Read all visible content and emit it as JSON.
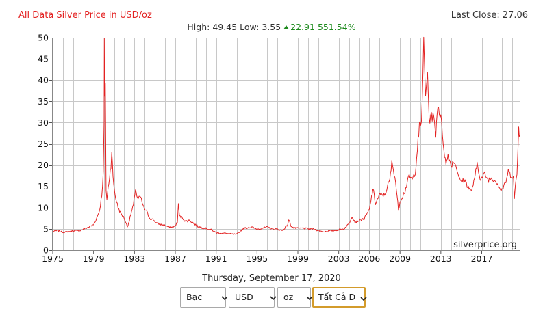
{
  "header": {
    "title": "All Data Silver Price in USD/oz",
    "last_close_label": "Last Close:",
    "last_close_value": "27.06",
    "high_label": "High:",
    "high_value": "49.45",
    "low_label": "Low:",
    "low_value": "3.55",
    "change_value": "22.91",
    "change_pct": "551.54%"
  },
  "watermark": "silverprice.org",
  "date_label": "Thursday, September 17, 2020",
  "controls": {
    "metal": "Bạc",
    "currency": "USD",
    "unit": "oz",
    "range": "Tất Cả D"
  },
  "colors": {
    "line": "#e32222",
    "title": "#e32222",
    "up": "#1e8a1e",
    "grid": "#c8c8c8"
  },
  "chart_data": {
    "type": "line",
    "title": "All Data Silver Price in USD/oz",
    "xlabel": "",
    "ylabel": "",
    "xlim": [
      1975,
      2020.72
    ],
    "ylim": [
      0,
      50
    ],
    "x_ticks": [
      1975,
      1979,
      1983,
      1987,
      1991,
      1995,
      1999,
      2003,
      2006,
      2009,
      2013,
      2017
    ],
    "y_ticks": [
      0,
      5,
      10,
      15,
      20,
      25,
      30,
      35,
      40,
      45,
      50
    ],
    "grid": true,
    "series": [
      {
        "name": "",
        "points": [
          [
            1975.0,
            4.4
          ],
          [
            1975.5,
            4.6
          ],
          [
            1976.0,
            4.2
          ],
          [
            1976.5,
            4.3
          ],
          [
            1977.0,
            4.6
          ],
          [
            1977.5,
            4.5
          ],
          [
            1978.0,
            4.9
          ],
          [
            1978.5,
            5.4
          ],
          [
            1979.0,
            6.0
          ],
          [
            1979.3,
            7.5
          ],
          [
            1979.6,
            9.5
          ],
          [
            1979.8,
            13.0
          ],
          [
            1979.95,
            18.0
          ],
          [
            1980.03,
            30.0
          ],
          [
            1980.05,
            49.45
          ],
          [
            1980.08,
            35.0
          ],
          [
            1980.15,
            40.0
          ],
          [
            1980.22,
            14.0
          ],
          [
            1980.3,
            12.0
          ],
          [
            1980.5,
            16.0
          ],
          [
            1980.7,
            20.0
          ],
          [
            1980.78,
            23.5
          ],
          [
            1980.9,
            17.0
          ],
          [
            1981.1,
            13.0
          ],
          [
            1981.4,
            10.0
          ],
          [
            1981.7,
            8.5
          ],
          [
            1982.0,
            7.5
          ],
          [
            1982.3,
            5.5
          ],
          [
            1982.5,
            7.0
          ],
          [
            1982.7,
            9.0
          ],
          [
            1982.9,
            10.5
          ],
          [
            1983.1,
            14.5
          ],
          [
            1983.3,
            12.0
          ],
          [
            1983.6,
            12.5
          ],
          [
            1983.9,
            10.0
          ],
          [
            1984.2,
            9.0
          ],
          [
            1984.5,
            7.5
          ],
          [
            1984.8,
            7.2
          ],
          [
            1985.2,
            6.3
          ],
          [
            1985.6,
            6.0
          ],
          [
            1986.0,
            5.8
          ],
          [
            1986.5,
            5.3
          ],
          [
            1986.9,
            5.5
          ],
          [
            1987.2,
            6.5
          ],
          [
            1987.3,
            11.0
          ],
          [
            1987.4,
            8.0
          ],
          [
            1987.7,
            7.6
          ],
          [
            1988.0,
            6.8
          ],
          [
            1988.4,
            7.0
          ],
          [
            1988.8,
            6.3
          ],
          [
            1989.2,
            5.6
          ],
          [
            1989.6,
            5.3
          ],
          [
            1990.0,
            5.1
          ],
          [
            1990.5,
            4.8
          ],
          [
            1991.0,
            4.1
          ],
          [
            1991.5,
            4.0
          ],
          [
            1992.0,
            3.9
          ],
          [
            1992.5,
            3.8
          ],
          [
            1993.0,
            3.7
          ],
          [
            1993.3,
            4.3
          ],
          [
            1993.6,
            5.0
          ],
          [
            1994.0,
            5.3
          ],
          [
            1994.5,
            5.4
          ],
          [
            1995.0,
            4.9
          ],
          [
            1995.5,
            5.2
          ],
          [
            1996.0,
            5.4
          ],
          [
            1996.5,
            5.0
          ],
          [
            1997.0,
            4.9
          ],
          [
            1997.5,
            4.6
          ],
          [
            1998.0,
            6.0
          ],
          [
            1998.1,
            7.2
          ],
          [
            1998.3,
            5.8
          ],
          [
            1998.6,
            5.2
          ],
          [
            1999.0,
            5.1
          ],
          [
            1999.5,
            5.2
          ],
          [
            2000.0,
            5.0
          ],
          [
            2000.5,
            5.0
          ],
          [
            2001.0,
            4.6
          ],
          [
            2001.5,
            4.3
          ],
          [
            2002.0,
            4.5
          ],
          [
            2002.5,
            4.6
          ],
          [
            2003.0,
            4.8
          ],
          [
            2003.5,
            5.0
          ],
          [
            2004.0,
            6.2
          ],
          [
            2004.3,
            8.0
          ],
          [
            2004.6,
            6.6
          ],
          [
            2005.0,
            7.0
          ],
          [
            2005.5,
            7.4
          ],
          [
            2006.0,
            9.5
          ],
          [
            2006.35,
            14.5
          ],
          [
            2006.6,
            11.0
          ],
          [
            2007.0,
            13.0
          ],
          [
            2007.5,
            13.0
          ],
          [
            2008.0,
            16.5
          ],
          [
            2008.2,
            20.5
          ],
          [
            2008.5,
            17.5
          ],
          [
            2008.85,
            9.5
          ],
          [
            2009.0,
            11.5
          ],
          [
            2009.5,
            14.0
          ],
          [
            2009.9,
            17.5
          ],
          [
            2010.2,
            16.5
          ],
          [
            2010.5,
            18.5
          ],
          [
            2010.9,
            29.0
          ],
          [
            2011.1,
            30.0
          ],
          [
            2011.32,
            48.5
          ],
          [
            2011.5,
            36.0
          ],
          [
            2011.7,
            42.5
          ],
          [
            2011.85,
            30.0
          ],
          [
            2012.0,
            32.0
          ],
          [
            2012.3,
            31.0
          ],
          [
            2012.5,
            27.5
          ],
          [
            2012.7,
            34.5
          ],
          [
            2013.0,
            31.0
          ],
          [
            2013.3,
            24.0
          ],
          [
            2013.5,
            20.0
          ],
          [
            2013.7,
            22.5
          ],
          [
            2014.0,
            20.0
          ],
          [
            2014.3,
            21.0
          ],
          [
            2014.6,
            19.0
          ],
          [
            2014.9,
            16.0
          ],
          [
            2015.3,
            16.5
          ],
          [
            2015.7,
            14.8
          ],
          [
            2015.95,
            13.8
          ],
          [
            2016.3,
            16.5
          ],
          [
            2016.55,
            20.5
          ],
          [
            2016.9,
            16.5
          ],
          [
            2017.3,
            18.0
          ],
          [
            2017.6,
            16.5
          ],
          [
            2018.0,
            17.0
          ],
          [
            2018.5,
            16.0
          ],
          [
            2018.9,
            14.0
          ],
          [
            2019.3,
            15.5
          ],
          [
            2019.6,
            18.5
          ],
          [
            2019.9,
            17.5
          ],
          [
            2020.1,
            17.5
          ],
          [
            2020.2,
            12.0
          ],
          [
            2020.3,
            15.0
          ],
          [
            2020.45,
            18.0
          ],
          [
            2020.55,
            24.0
          ],
          [
            2020.62,
            29.0
          ],
          [
            2020.67,
            26.5
          ],
          [
            2020.72,
            27.06
          ]
        ]
      }
    ]
  }
}
